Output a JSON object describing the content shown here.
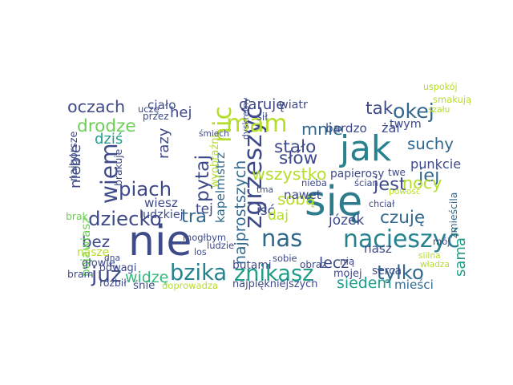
{
  "wordcloud": {
    "colors": {
      "background": "#ffffff",
      "palette": [
        "#440154",
        "#482878",
        "#3e4a89",
        "#31688e",
        "#26828e",
        "#1f9e89",
        "#35b779",
        "#6ece58",
        "#b5de2b",
        "#fde725"
      ]
    },
    "words": [
      {
        "text": "nie",
        "weight": 1.0,
        "color": "#3e4a89",
        "vertical": false
      },
      {
        "text": "się",
        "weight": 0.98,
        "color": "#2d7c8e",
        "vertical": false
      },
      {
        "text": "jak",
        "weight": 0.82,
        "color": "#26828e",
        "vertical": false
      },
      {
        "text": "zgrzeszyć",
        "weight": 0.55,
        "color": "#3e4a89",
        "vertical": true
      },
      {
        "text": "nacieszyć",
        "weight": 0.52,
        "color": "#26828e",
        "vertical": false
      },
      {
        "text": "mam",
        "weight": 0.52,
        "color": "#b5de2b",
        "vertical": false
      },
      {
        "text": "nic",
        "weight": 0.55,
        "color": "#b5de2b",
        "vertical": true
      },
      {
        "text": "nas",
        "weight": 0.5,
        "color": "#31688e",
        "vertical": false
      },
      {
        "text": "wiem",
        "weight": 0.48,
        "color": "#3e4a89",
        "vertical": true
      },
      {
        "text": "bzika",
        "weight": 0.46,
        "color": "#26828e",
        "vertical": false
      },
      {
        "text": "znikasz",
        "weight": 0.46,
        "color": "#1f9e89",
        "vertical": false
      },
      {
        "text": "już",
        "weight": 0.44,
        "color": "#3e4a89",
        "vertical": false
      },
      {
        "text": "okej",
        "weight": 0.42,
        "color": "#31688e",
        "vertical": false
      },
      {
        "text": "tylko",
        "weight": 0.4,
        "color": "#31688e",
        "vertical": false
      },
      {
        "text": "dziecko",
        "weight": 0.4,
        "color": "#3e4a89",
        "vertical": false
      },
      {
        "text": "piach",
        "weight": 0.4,
        "color": "#3e4a89",
        "vertical": false
      },
      {
        "text": "pytaj",
        "weight": 0.38,
        "color": "#3e4a89",
        "vertical": true
      },
      {
        "text": "tra",
        "weight": 0.36,
        "color": "#31688e",
        "vertical": false
      },
      {
        "text": "jest",
        "weight": 0.36,
        "color": "#3e4a89",
        "vertical": false
      },
      {
        "text": "jej",
        "weight": 0.36,
        "color": "#31688e",
        "vertical": false
      },
      {
        "text": "czuję",
        "weight": 0.34,
        "color": "#31688e",
        "vertical": false
      },
      {
        "text": "słów",
        "weight": 0.34,
        "color": "#3e4a89",
        "vertical": false
      },
      {
        "text": "stało",
        "weight": 0.34,
        "color": "#3e4a89",
        "vertical": false
      },
      {
        "text": "mnie",
        "weight": 0.32,
        "color": "#31688e",
        "vertical": false
      },
      {
        "text": "tak",
        "weight": 0.34,
        "color": "#3e4a89",
        "vertical": false
      },
      {
        "text": "drodze",
        "weight": 0.34,
        "color": "#6ece58",
        "vertical": false
      },
      {
        "text": "oczach",
        "weight": 0.32,
        "color": "#3e4a89",
        "vertical": false
      },
      {
        "text": "wszystko",
        "weight": 0.32,
        "color": "#b5de2b",
        "vertical": false
      },
      {
        "text": "nocy",
        "weight": 0.32,
        "color": "#b5de2b",
        "vertical": false
      },
      {
        "text": "sobą",
        "weight": 0.3,
        "color": "#b5de2b",
        "vertical": false
      },
      {
        "text": "bez",
        "weight": 0.3,
        "color": "#3e4a89",
        "vertical": false
      },
      {
        "text": "najprostszych",
        "weight": 0.28,
        "color": "#31688e",
        "vertical": true
      },
      {
        "text": "suchy",
        "weight": 0.3,
        "color": "#31688e",
        "vertical": false
      },
      {
        "text": "lecz",
        "weight": 0.28,
        "color": "#3e4a89",
        "vertical": false
      },
      {
        "text": "siedem",
        "weight": 0.28,
        "color": "#1f9e89",
        "vertical": false
      },
      {
        "text": "widzę",
        "weight": 0.28,
        "color": "#35b779",
        "vertical": false
      },
      {
        "text": "sama",
        "weight": 0.26,
        "color": "#1f9e89",
        "vertical": true
      },
      {
        "text": "józek",
        "weight": 0.24,
        "color": "#3e4a89",
        "vertical": false
      },
      {
        "text": "razy",
        "weight": 0.26,
        "color": "#3e4a89",
        "vertical": true
      },
      {
        "text": "hej",
        "weight": 0.26,
        "color": "#3e4a89",
        "vertical": false
      },
      {
        "text": "niebie",
        "weight": 0.26,
        "color": "#3e4a89",
        "vertical": true
      },
      {
        "text": "dziś",
        "weight": 0.26,
        "color": "#1f9e89",
        "vertical": false
      },
      {
        "text": "daruję",
        "weight": 0.26,
        "color": "#3e4a89",
        "vertical": false
      },
      {
        "text": "tej",
        "weight": 0.24,
        "color": "#3e4a89",
        "vertical": false
      },
      {
        "text": "iść",
        "weight": 0.24,
        "color": "#3e4a89",
        "vertical": false
      },
      {
        "text": "daj",
        "weight": 0.24,
        "color": "#b5de2b",
        "vertical": false
      },
      {
        "text": "żal",
        "weight": 0.22,
        "color": "#3e4a89",
        "vertical": false
      },
      {
        "text": "punkcie",
        "weight": 0.22,
        "color": "#3e4a89",
        "vertical": false
      },
      {
        "text": "kapelmistrz",
        "weight": 0.2,
        "color": "#31688e",
        "vertical": true
      },
      {
        "text": "pojawiasz",
        "weight": 0.2,
        "color": "#6ece58",
        "vertical": true
      },
      {
        "text": "mieści",
        "weight": 0.2,
        "color": "#31688e",
        "vertical": false
      },
      {
        "text": "nasz",
        "weight": 0.2,
        "color": "#3e4a89",
        "vertical": false
      },
      {
        "text": "nawet",
        "weight": 0.2,
        "color": "#3e4a89",
        "vertical": false
      },
      {
        "text": "wiesz",
        "weight": 0.2,
        "color": "#3e4a89",
        "vertical": false
      },
      {
        "text": "ciało",
        "weight": 0.2,
        "color": "#3e4a89",
        "vertical": false
      },
      {
        "text": "bardzo",
        "weight": 0.2,
        "color": "#3e4a89",
        "vertical": false
      },
      {
        "text": "ludzkiej",
        "weight": 0.18,
        "color": "#3e4a89",
        "vertical": false
      },
      {
        "text": "twym",
        "weight": 0.18,
        "color": "#3e4a89",
        "vertical": false
      },
      {
        "text": "wiatr",
        "weight": 0.18,
        "color": "#3e4a89",
        "vertical": false
      },
      {
        "text": "papierosy",
        "weight": 0.17,
        "color": "#3e4a89",
        "vertical": false
      },
      {
        "text": "serca",
        "weight": 0.17,
        "color": "#3e4a89",
        "vertical": false
      },
      {
        "text": "butami",
        "weight": 0.17,
        "color": "#3e4a89",
        "vertical": false
      },
      {
        "text": "najpiękniejszych",
        "weight": 0.15,
        "color": "#3e4a89",
        "vertical": false
      },
      {
        "text": "nasze",
        "weight": 0.17,
        "color": "#b5de2b",
        "vertical": false
      },
      {
        "text": "śnie",
        "weight": 0.16,
        "color": "#3e4a89",
        "vertical": false
      },
      {
        "text": "odwagi",
        "weight": 0.15,
        "color": "#3e4a89",
        "vertical": false
      },
      {
        "text": "mojej",
        "weight": 0.15,
        "color": "#3e4a89",
        "vertical": false
      },
      {
        "text": "sił",
        "weight": 0.15,
        "color": "#3e4a89",
        "vertical": false
      },
      {
        "text": "wyobraźni",
        "weight": 0.15,
        "color": "#b5de2b",
        "vertical": true
      },
      {
        "text": "najgorsze",
        "weight": 0.15,
        "color": "#3e4a89",
        "vertical": true
      },
      {
        "text": "brakuje",
        "weight": 0.14,
        "color": "#3e4a89",
        "vertical": true
      },
      {
        "text": "zmieścila",
        "weight": 0.14,
        "color": "#31688e",
        "vertical": true
      },
      {
        "text": "głowie",
        "weight": 0.15,
        "color": "#3e4a89",
        "vertical": false
      },
      {
        "text": "brak",
        "weight": 0.14,
        "color": "#6ece58",
        "vertical": false
      },
      {
        "text": "bram",
        "weight": 0.14,
        "color": "#3e4a89",
        "vertical": false
      },
      {
        "text": "rozbił",
        "weight": 0.14,
        "color": "#3e4a89",
        "vertical": false
      },
      {
        "text": "doprowadza",
        "weight": 0.12,
        "color": "#b5de2b",
        "vertical": false
      },
      {
        "text": "mogłbym",
        "weight": 0.12,
        "color": "#3e4a89",
        "vertical": false
      },
      {
        "text": "ludzie",
        "weight": 0.12,
        "color": "#3e4a89",
        "vertical": false
      },
      {
        "text": "obraz",
        "weight": 0.13,
        "color": "#3e4a89",
        "vertical": false
      },
      {
        "text": "sobie",
        "weight": 0.12,
        "color": "#3e4a89",
        "vertical": false
      },
      {
        "text": "nią",
        "weight": 0.13,
        "color": "#3e4a89",
        "vertical": false
      },
      {
        "text": "twe",
        "weight": 0.13,
        "color": "#3e4a89",
        "vertical": false
      },
      {
        "text": "ścian",
        "weight": 0.12,
        "color": "#3e4a89",
        "vertical": false
      },
      {
        "text": "nieba",
        "weight": 0.12,
        "color": "#3e4a89",
        "vertical": false
      },
      {
        "text": "mój",
        "weight": 0.12,
        "color": "#3e4a89",
        "vertical": false
      },
      {
        "text": "chciał",
        "weight": 0.11,
        "color": "#3e4a89",
        "vertical": false
      },
      {
        "text": "siilna",
        "weight": 0.1,
        "color": "#b5de2b",
        "vertical": false
      },
      {
        "text": "władza",
        "weight": 0.1,
        "color": "#b5de2b",
        "vertical": false
      },
      {
        "text": "powość",
        "weight": 0.1,
        "color": "#b5de2b",
        "vertical": false
      },
      {
        "text": "szału",
        "weight": 0.1,
        "color": "#b5de2b",
        "vertical": false
      },
      {
        "text": "smakują",
        "weight": 0.12,
        "color": "#b5de2b",
        "vertical": false
      },
      {
        "text": "uspokój",
        "weight": 0.11,
        "color": "#b5de2b",
        "vertical": false
      },
      {
        "text": "śmiech",
        "weight": 0.1,
        "color": "#3e4a89",
        "vertical": false
      },
      {
        "text": "dyskretny",
        "weight": 0.1,
        "color": "#3e4a89",
        "vertical": true
      },
      {
        "text": "uczę",
        "weight": 0.12,
        "color": "#3e4a89",
        "vertical": false
      },
      {
        "text": "przez",
        "weight": 0.13,
        "color": "#3e4a89",
        "vertical": false
      },
      {
        "text": "los",
        "weight": 0.11,
        "color": "#3e4a89",
        "vertical": false
      },
      {
        "text": "dna",
        "weight": 0.1,
        "color": "#3e4a89",
        "vertical": false
      },
      {
        "text": "tma",
        "weight": 0.1,
        "color": "#3e4a89",
        "vertical": false
      }
    ]
  }
}
